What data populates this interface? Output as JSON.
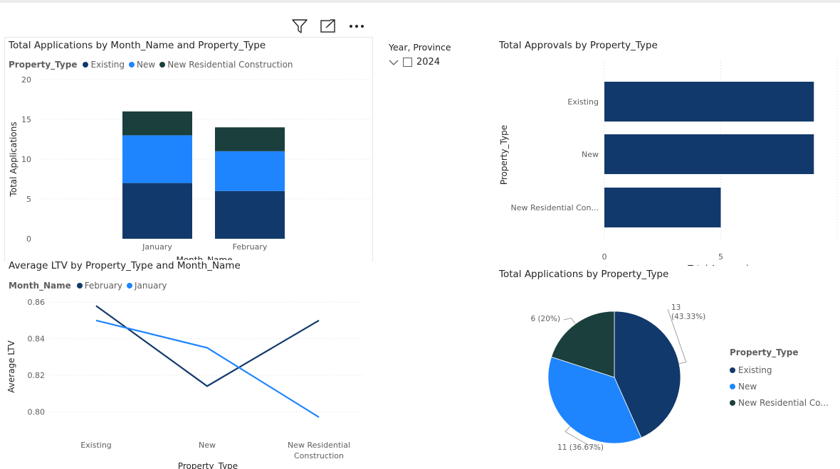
{
  "toolbar": {
    "filter_icon": "filter-icon",
    "focus_icon": "focus-mode-icon",
    "more_icon": "more-options-icon"
  },
  "colors": {
    "existing": "#12396b",
    "new": "#1f85ff",
    "new_res": "#1a3f3c",
    "grid": "#dcdcdc",
    "axis_text": "#605e5c"
  },
  "slicer": {
    "title": "Year, Province",
    "item": "2024"
  },
  "legends": {
    "property_type_title": "Property_Type",
    "existing": "Existing",
    "new": "New",
    "new_res": "New Residential Construction",
    "new_res_short": "New Residential Co...",
    "month_title": "Month_Name",
    "february": "February",
    "january": "January"
  },
  "chart_data": [
    {
      "id": "apps_by_month",
      "type": "bar",
      "stacked": true,
      "title": "Total Applications by Month_Name and Property_Type",
      "xlabel": "Month_Name",
      "ylabel": "Total Applications",
      "categories": [
        "January",
        "February"
      ],
      "yticks": [
        "0",
        "5",
        "10",
        "15",
        "20"
      ],
      "ylim": [
        0,
        20
      ],
      "series": [
        {
          "name": "Existing",
          "values": [
            7,
            6
          ]
        },
        {
          "name": "New",
          "values": [
            6,
            5
          ]
        },
        {
          "name": "New Residential Construction",
          "values": [
            3,
            3
          ]
        }
      ],
      "grid": true,
      "legend": "top-left"
    },
    {
      "id": "approvals_by_type",
      "type": "bar",
      "orientation": "horizontal",
      "title": "Total Approvals by Property_Type",
      "xlabel": "Total Approvals",
      "ylabel": "Property_Type",
      "categories": [
        "Existing",
        "New",
        "New Residential Con..."
      ],
      "values": [
        9,
        9,
        5
      ],
      "xticks": [
        "0",
        "5"
      ],
      "xlim": [
        0,
        10
      ],
      "grid": true
    },
    {
      "id": "ltv_by_type",
      "type": "line",
      "title": "Average LTV by Property_Type and Month_Name",
      "xlabel": "Property_Type",
      "ylabel": "Average LTV",
      "categories": [
        "Existing",
        "New",
        "New Residential Construction"
      ],
      "category_lines": [
        [
          "Existing"
        ],
        [
          "New"
        ],
        [
          "New Residential",
          "Construction"
        ]
      ],
      "yticks": [
        "0.80",
        "0.82",
        "0.84",
        "0.86"
      ],
      "ylim": [
        0.7939,
        0.8636
      ],
      "series": [
        {
          "name": "February",
          "values": [
            0.858,
            0.814,
            0.85
          ]
        },
        {
          "name": "January",
          "values": [
            0.85,
            0.835,
            0.797
          ]
        }
      ],
      "grid": true,
      "legend": "top-left"
    },
    {
      "id": "apps_by_type_pie",
      "type": "pie",
      "title": "Total Applications by Property_Type",
      "categories": [
        "Existing",
        "New",
        "New Residential Construction"
      ],
      "values": [
        13,
        11,
        6
      ],
      "labels": [
        [
          "13",
          "(43.33%)"
        ],
        [
          "11 (36.67%)"
        ],
        [
          "6 (20%)"
        ]
      ],
      "legend": "right"
    }
  ]
}
